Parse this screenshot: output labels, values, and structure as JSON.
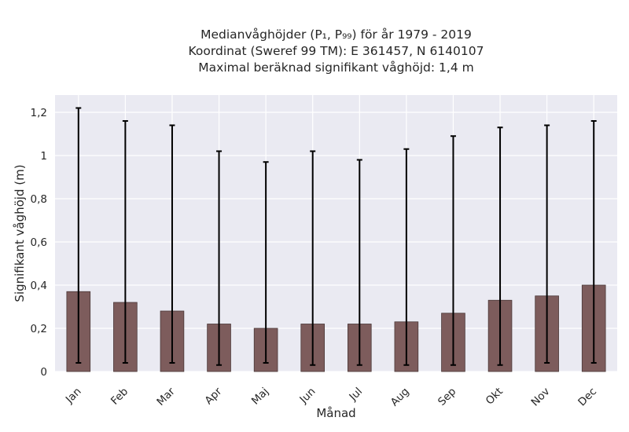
{
  "chart_data": {
    "type": "bar",
    "title_lines": [
      "Medianvåghöjder (P₁, P₉₉) för år 1979 - 2019",
      "Koordinat (Sweref 99 TM): E 361457, N 6140107",
      "Maximal beräknad signifikant våghöjd: 1,4 m"
    ],
    "xlabel": "Månad",
    "ylabel": "Signifikant våghöjd (m)",
    "categories": [
      "Jan",
      "Feb",
      "Mar",
      "Apr",
      "Maj",
      "Jun",
      "Jul",
      "Aug",
      "Sep",
      "Okt",
      "Nov",
      "Dec"
    ],
    "values": [
      0.37,
      0.32,
      0.28,
      0.22,
      0.2,
      0.22,
      0.22,
      0.23,
      0.27,
      0.33,
      0.35,
      0.4
    ],
    "p1": [
      0.04,
      0.04,
      0.04,
      0.03,
      0.04,
      0.03,
      0.03,
      0.03,
      0.03,
      0.03,
      0.04,
      0.04
    ],
    "p99": [
      1.22,
      1.16,
      1.14,
      1.02,
      0.97,
      1.02,
      0.98,
      1.03,
      1.09,
      1.13,
      1.14,
      1.16
    ],
    "ylim": [
      0,
      1.28
    ],
    "yticks": [
      0,
      0.2,
      0.4,
      0.6,
      0.8,
      1,
      1.2
    ],
    "ytick_labels": [
      "0",
      "0,2",
      "0,4",
      "0,6",
      "0,8",
      "1",
      "1,2"
    ],
    "grid": true,
    "colors": {
      "bar_fill": "#7d5c5c",
      "bar_edge": "#4a3838",
      "errorbar": "#000000",
      "plot_background": "#eaeaf2",
      "grid": "#ffffff"
    }
  }
}
